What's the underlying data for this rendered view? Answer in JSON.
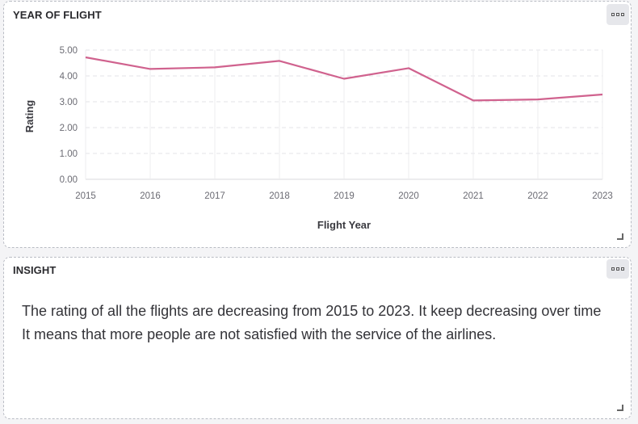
{
  "chart_panel": {
    "title": "YEAR OF FLIGHT"
  },
  "insight_panel": {
    "title": "INSIGHT",
    "text": "The rating of all the flights are decreasing from 2015 to 2023. It keep decreasing over time It means that more people are not satisfied with the service of the airlines."
  },
  "chart_data": {
    "type": "line",
    "xlabel": "Flight Year",
    "ylabel": "Rating",
    "x": [
      "2015",
      "2016",
      "2017",
      "2018",
      "2019",
      "2020",
      "2021",
      "2022",
      "2023"
    ],
    "values": [
      4.72,
      4.27,
      4.33,
      4.58,
      3.89,
      4.3,
      3.05,
      3.09,
      3.28
    ],
    "ylim": [
      0,
      5
    ],
    "y_ticks": [
      "0.00",
      "1.00",
      "2.00",
      "3.00",
      "4.00",
      "5.00"
    ],
    "grid": true,
    "line_color": "#d0628e"
  }
}
